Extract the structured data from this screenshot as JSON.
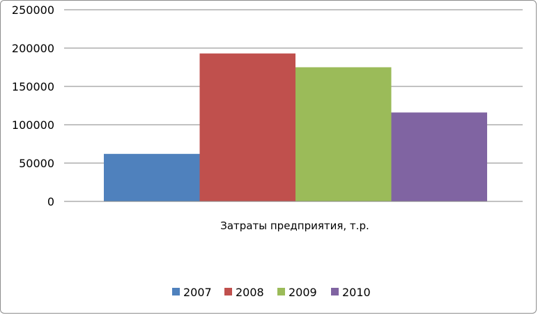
{
  "chart_data": {
    "type": "bar",
    "title": "",
    "xlabel": "",
    "ylabel": "",
    "categories": [
      "Затраты предприятия, т.р."
    ],
    "series": [
      {
        "name": "2007",
        "values": [
          62000
        ],
        "color": "#4f81bd"
      },
      {
        "name": "2008",
        "values": [
          193000
        ],
        "color": "#c0504d"
      },
      {
        "name": "2009",
        "values": [
          175000
        ],
        "color": "#9bbb59"
      },
      {
        "name": "2010",
        "values": [
          116000
        ],
        "color": "#8064a2"
      }
    ],
    "ylim": [
      0,
      250000
    ],
    "yticks": [
      0,
      50000,
      100000,
      150000,
      200000,
      250000
    ],
    "grid": true,
    "legend_position": "bottom"
  }
}
